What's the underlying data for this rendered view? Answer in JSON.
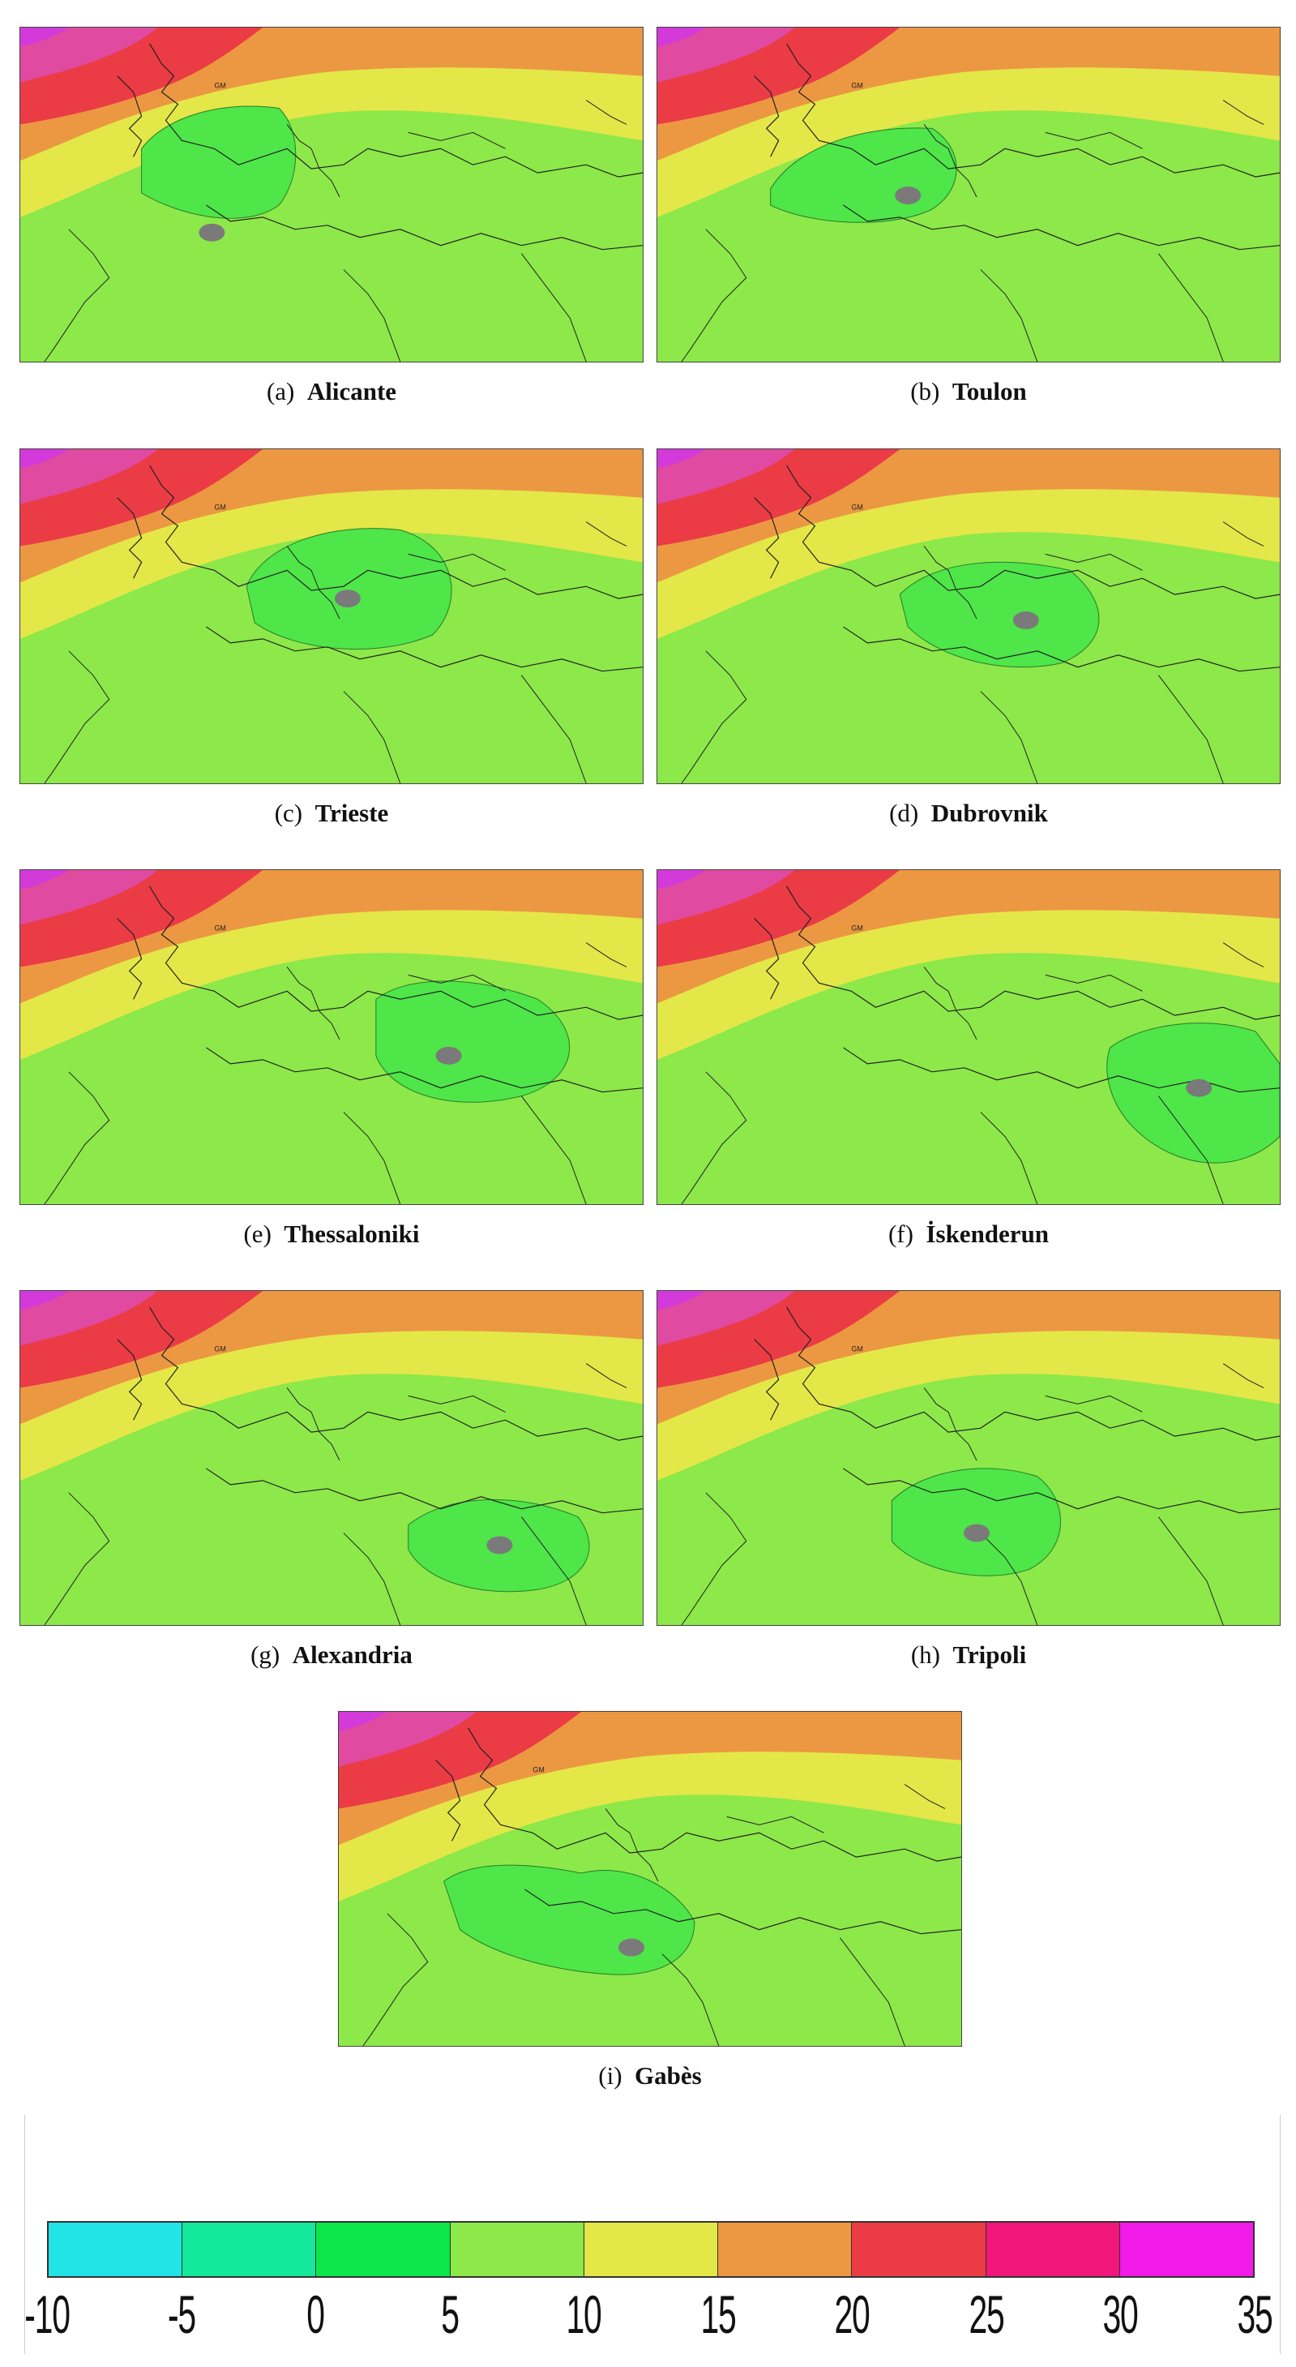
{
  "panels": [
    {
      "label": "(a)",
      "city": "Alicante"
    },
    {
      "label": "(b)",
      "city": "Toulon"
    },
    {
      "label": "(c)",
      "city": "Trieste"
    },
    {
      "label": "(d)",
      "city": "Dubrovnik"
    },
    {
      "label": "(e)",
      "city": "Thessaloniki"
    },
    {
      "label": "(f)",
      "city": "İskenderun"
    },
    {
      "label": "(g)",
      "city": "Alexandria"
    },
    {
      "label": "(h)",
      "city": "Tripoli"
    },
    {
      "label": "(i)",
      "city": "Gabès"
    }
  ],
  "map_label": "GM",
  "legend": {
    "ticks": [
      "-10",
      "-5",
      "0",
      "5",
      "10",
      "15",
      "20",
      "25",
      "30",
      "35"
    ],
    "colors": [
      "#22e3e6",
      "#14e89a",
      "#0de64b",
      "#8de84a",
      "#e4e748",
      "#ec9842",
      "#eb3b45",
      "#f0167a",
      "#f21ae8"
    ]
  }
}
